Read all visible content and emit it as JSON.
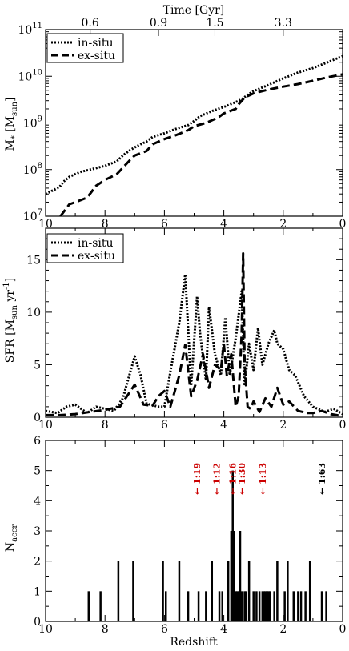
{
  "chart_data": [
    {
      "type": "line",
      "panel": "stellar-mass",
      "top_axis": {
        "label": "Time [Gyr]",
        "ticks": [
          "0.6",
          "0.9",
          "1.5",
          "3.3"
        ],
        "tick_redshifts": [
          8.5,
          6.2,
          4.3,
          2.0
        ]
      },
      "xlabel": "",
      "ylabel": "M* [Msun]",
      "ylabel_parts": {
        "main": "M",
        "sub1": "*",
        "open": " [M",
        "sub2": "sun",
        "close": "]"
      },
      "yscale": "log",
      "ylim": [
        10000000.0,
        100000000000.0
      ],
      "xlim": [
        10,
        0
      ],
      "y_ticks": [
        {
          "base": "10",
          "exp": "7"
        },
        {
          "base": "10",
          "exp": "8"
        },
        {
          "base": "10",
          "exp": "9"
        },
        {
          "base": "10",
          "exp": "10"
        },
        {
          "base": "10",
          "exp": "11"
        }
      ],
      "x_ticks": [
        "10",
        "8",
        "6",
        "4",
        "2",
        "0"
      ],
      "legend": "top-left",
      "series": [
        {
          "name": "in-situ",
          "style": "dotted",
          "x": [
            10.0,
            9.6,
            9.5,
            9.4,
            9.2,
            9.0,
            8.8,
            8.5,
            8.0,
            7.6,
            7.4,
            7.2,
            7.0,
            6.8,
            6.6,
            6.4,
            6.0,
            5.6,
            5.2,
            5.0,
            4.8,
            4.4,
            4.0,
            3.6,
            3.4,
            3.2,
            3.0,
            2.5,
            2.0,
            1.5,
            1.0,
            0.5,
            0.0
          ],
          "values": [
            30000000.0,
            40000000.0,
            45000000.0,
            55000000.0,
            70000000.0,
            80000000.0,
            90000000.0,
            100000000.0,
            120000000.0,
            150000000.0,
            200000000.0,
            250000000.0,
            300000000.0,
            350000000.0,
            400000000.0,
            500000000.0,
            600000000.0,
            750000000.0,
            900000000.0,
            1100000000.0,
            1400000000.0,
            1800000000.0,
            2200000000.0,
            2800000000.0,
            3200000000.0,
            4000000000.0,
            4800000000.0,
            6500000000.0,
            9000000000.0,
            12000000000.0,
            15000000000.0,
            20000000000.0,
            27000000000.0
          ]
        },
        {
          "name": "ex-situ",
          "style": "dashed",
          "x": [
            9.5,
            9.2,
            9.0,
            8.6,
            8.3,
            8.0,
            7.6,
            7.2,
            7.0,
            6.6,
            6.4,
            6.0,
            5.6,
            5.2,
            5.0,
            4.6,
            4.2,
            4.0,
            3.6,
            3.5,
            3.3,
            3.0,
            2.5,
            2.0,
            1.5,
            1.0,
            0.5,
            0.0
          ],
          "values": [
            10000000.0,
            18000000.0,
            20000000.0,
            25000000.0,
            45000000.0,
            60000000.0,
            80000000.0,
            150000000.0,
            200000000.0,
            250000000.0,
            350000000.0,
            450000000.0,
            550000000.0,
            700000000.0,
            850000000.0,
            1000000000.0,
            1300000000.0,
            1600000000.0,
            2000000000.0,
            2500000000.0,
            3500000000.0,
            4300000000.0,
            5200000000.0,
            6000000000.0,
            6800000000.0,
            8000000000.0,
            9500000000.0,
            11000000000.0
          ]
        }
      ]
    },
    {
      "type": "line",
      "panel": "sfr",
      "xlabel": "",
      "ylabel": "SFR [Msun yr-1]",
      "ylabel_parts": {
        "main": "SFR [M",
        "sub": "sun",
        "mid": " yr",
        "sup": "-1",
        "close": "]"
      },
      "ylim": [
        0,
        18
      ],
      "xlim": [
        10,
        0
      ],
      "y_ticks": [
        "0",
        "5",
        "10",
        "15"
      ],
      "x_ticks": [
        "10",
        "8",
        "6",
        "4",
        "2",
        "0"
      ],
      "legend": "top-left",
      "series": [
        {
          "name": "in-situ",
          "style": "dotted",
          "x": [
            10.0,
            9.6,
            9.3,
            9.0,
            8.6,
            8.3,
            8.0,
            7.7,
            7.4,
            7.0,
            6.8,
            6.6,
            6.2,
            6.0,
            5.8,
            5.5,
            5.3,
            5.1,
            4.9,
            4.8,
            4.6,
            4.5,
            4.3,
            4.1,
            3.95,
            3.8,
            3.6,
            3.4,
            3.3,
            3.15,
            3.0,
            2.85,
            2.7,
            2.5,
            2.3,
            2.2,
            2.0,
            1.8,
            1.6,
            1.3,
            1.0,
            0.6,
            0.3,
            0.0
          ],
          "values": [
            0.6,
            0.4,
            1.0,
            1.2,
            0.4,
            1.0,
            0.8,
            0.6,
            1.8,
            5.8,
            4.0,
            1.3,
            1.0,
            1.0,
            4.3,
            9.0,
            13.6,
            3.0,
            11.5,
            8.0,
            3.5,
            10.5,
            6.0,
            4.0,
            9.5,
            4.0,
            7.5,
            12.0,
            3.0,
            7.0,
            4.5,
            8.5,
            5.0,
            7.0,
            8.3,
            7.0,
            6.5,
            4.5,
            4.0,
            2.0,
            1.0,
            0.5,
            0.8,
            0.3
          ]
        },
        {
          "name": "ex-situ",
          "style": "dashed",
          "x": [
            10.0,
            9.5,
            9.0,
            8.5,
            8.0,
            7.5,
            7.0,
            6.7,
            6.4,
            6.2,
            6.0,
            5.8,
            5.5,
            5.3,
            5.1,
            4.9,
            4.7,
            4.5,
            4.3,
            4.1,
            4.0,
            3.9,
            3.75,
            3.6,
            3.5,
            3.4,
            3.35,
            3.3,
            3.2,
            3.1,
            3.0,
            2.8,
            2.6,
            2.4,
            2.2,
            2.0,
            1.8,
            1.5,
            1.2,
            1.0,
            0.7,
            0.4,
            0.0
          ],
          "values": [
            0.2,
            0.2,
            0.3,
            0.5,
            0.7,
            1.0,
            3.1,
            1.2,
            1.1,
            2.0,
            2.5,
            1.0,
            4.0,
            6.9,
            2.0,
            3.5,
            6.0,
            2.8,
            5.0,
            4.5,
            7.0,
            4.0,
            6.0,
            1.0,
            2.0,
            8.0,
            15.6,
            5.0,
            1.0,
            0.8,
            1.5,
            0.5,
            1.8,
            1.0,
            2.8,
            1.2,
            1.5,
            0.6,
            0.4,
            0.4,
            0.6,
            0.3,
            0.1
          ]
        }
      ]
    },
    {
      "type": "bar",
      "panel": "n-accr",
      "xlabel": "Redshift",
      "ylabel": "Naccr",
      "ylabel_parts": {
        "main": "N",
        "sub": "accr"
      },
      "ylim": [
        0,
        6
      ],
      "xlim": [
        10,
        0
      ],
      "y_ticks": [
        "0",
        "1",
        "2",
        "3",
        "4",
        "5",
        "6"
      ],
      "x_ticks": [
        "10",
        "8",
        "6",
        "4",
        "2",
        "0"
      ],
      "x": [
        8.55,
        8.15,
        7.55,
        7.05,
        6.05,
        5.95,
        5.5,
        5.2,
        4.85,
        4.6,
        4.4,
        4.15,
        4.05,
        3.85,
        3.75,
        3.7,
        3.65,
        3.6,
        3.55,
        3.5,
        3.45,
        3.4,
        3.3,
        3.25,
        3.15,
        3.0,
        2.9,
        2.8,
        2.7,
        2.65,
        2.6,
        2.55,
        2.5,
        2.45,
        2.3,
        2.2,
        1.95,
        1.85,
        1.65,
        1.5,
        1.4,
        1.25,
        1.1,
        0.7,
        0.55
      ],
      "values": [
        1,
        1,
        2,
        2,
        2,
        1,
        2,
        1,
        1,
        1,
        2,
        1,
        1,
        2,
        3,
        5,
        3,
        1,
        1,
        1,
        3,
        1,
        1,
        1,
        2,
        1,
        1,
        1,
        1,
        1,
        1,
        1,
        1,
        1,
        1,
        2,
        1,
        2,
        1,
        1,
        1,
        1,
        2,
        1,
        1
      ],
      "annotations": [
        {
          "text": "1:19",
          "x": 4.9,
          "color": "#cc0000"
        },
        {
          "text": "1:12",
          "x": 4.25,
          "color": "#cc0000"
        },
        {
          "text": "1:16",
          "x": 3.7,
          "color": "#cc0000"
        },
        {
          "text": "1:30",
          "x": 3.4,
          "color": "#cc0000"
        },
        {
          "text": "1:13",
          "x": 2.7,
          "color": "#cc0000"
        },
        {
          "text": "1:63",
          "x": 0.7,
          "color": "#000000"
        }
      ],
      "annotation_arrow": "←"
    }
  ]
}
